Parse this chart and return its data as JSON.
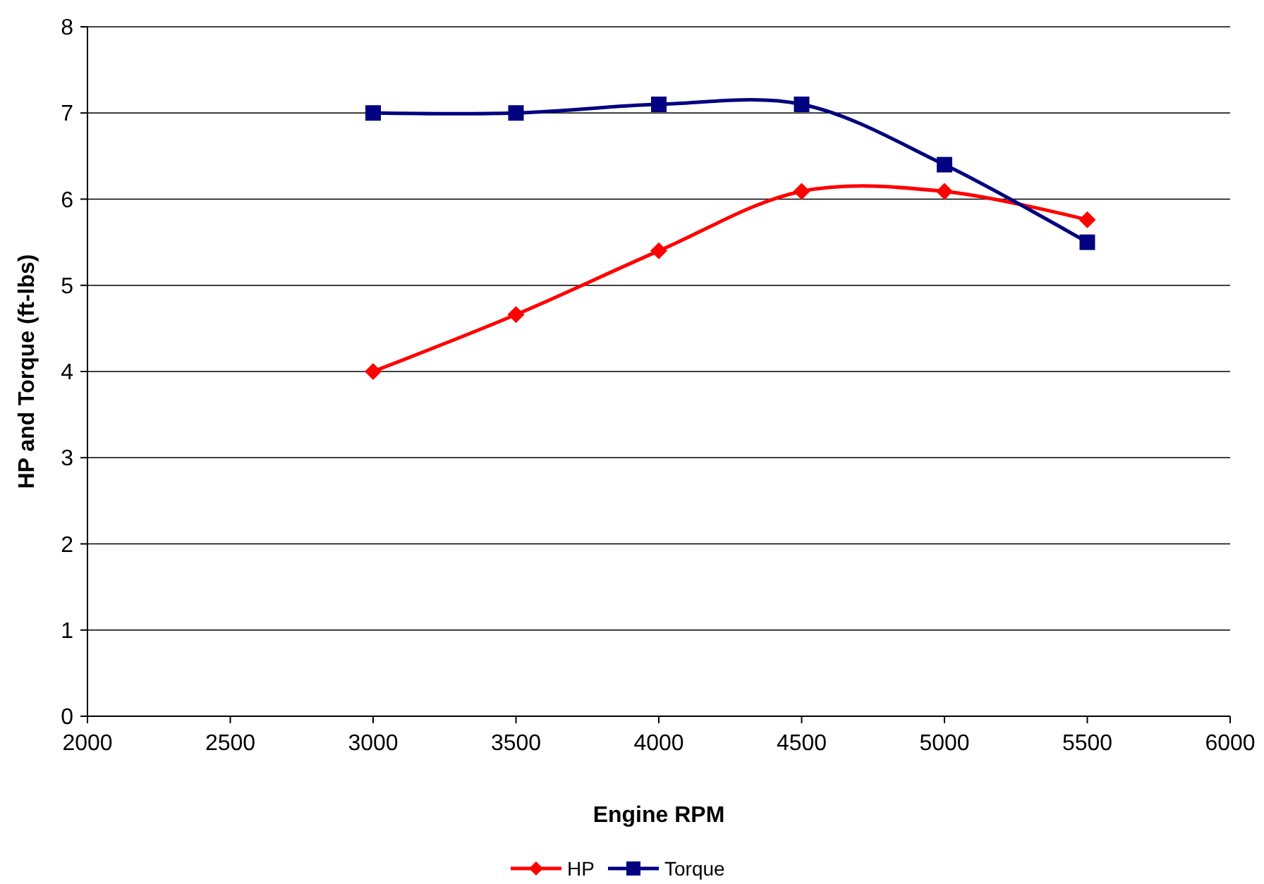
{
  "chart_data": {
    "type": "line",
    "xlabel": "Engine RPM",
    "ylabel": "HP and Torque (ft-lbs)",
    "x": [
      3000,
      3500,
      4000,
      4500,
      5000,
      5500
    ],
    "series": [
      {
        "name": "HP",
        "color": "#ff0000",
        "marker": "diamond",
        "values": [
          4.0,
          4.66,
          5.4,
          6.09,
          6.09,
          5.76
        ]
      },
      {
        "name": "Torque",
        "color": "#000080",
        "marker": "square",
        "values": [
          7.0,
          7.0,
          7.1,
          7.1,
          6.4,
          5.5
        ]
      }
    ],
    "xlim": [
      2000,
      6000
    ],
    "xticks": [
      2000,
      2500,
      3000,
      3500,
      4000,
      4500,
      5000,
      5500,
      6000
    ],
    "ylim": [
      0,
      8
    ],
    "yticks": [
      0,
      1,
      2,
      3,
      4,
      5,
      6,
      7,
      8
    ],
    "grid": "y",
    "legend": "bottom"
  }
}
